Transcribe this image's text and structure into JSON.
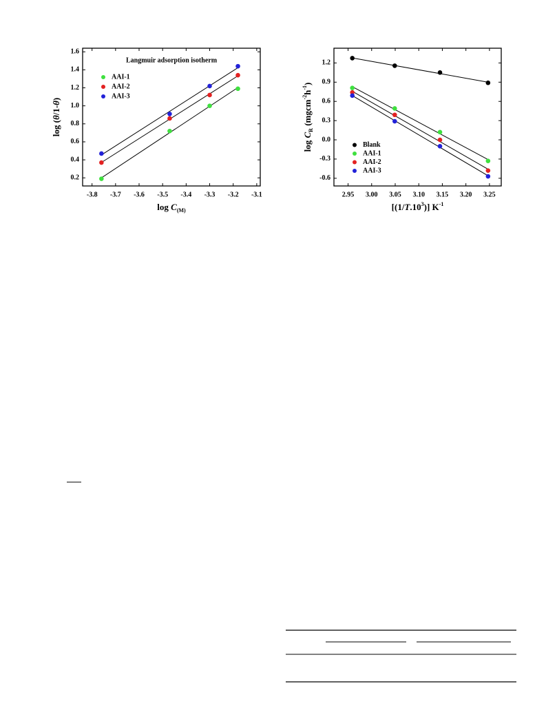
{
  "chart_data": [
    {
      "type": "scatter",
      "title": "Langmuir adsorption isotherm",
      "x_label": [
        {
          "text": "log ",
          "style": "normal"
        },
        {
          "text": "C",
          "style": "italic"
        },
        {
          "text": "(M)",
          "style": "sub"
        }
      ],
      "y_label": [
        {
          "text": "log (",
          "style": "normal"
        },
        {
          "text": "θ",
          "style": "italic"
        },
        {
          "text": "/1-",
          "style": "normal"
        },
        {
          "text": "θ",
          "style": "italic"
        },
        {
          "text": ")",
          "style": "normal"
        }
      ],
      "x": [
        -3.76,
        -3.47,
        -3.3,
        -3.18
      ],
      "series": [
        {
          "name": "AAI-1",
          "color": "#3fe03f",
          "values": [
            0.19,
            0.72,
            1.0,
            1.19
          ]
        },
        {
          "name": "AAI-2",
          "color": "#e32222",
          "values": [
            0.37,
            0.86,
            1.12,
            1.34
          ]
        },
        {
          "name": "AAI-3",
          "color": "#2222d8",
          "values": [
            0.47,
            0.91,
            1.22,
            1.44
          ]
        }
      ],
      "xlim": [
        -3.84,
        -3.085
      ],
      "xticks": [
        -3.8,
        -3.7,
        -3.6,
        -3.5,
        -3.4,
        -3.3,
        -3.2,
        -3.1
      ],
      "ylim": [
        0.11,
        1.64
      ],
      "yticks": [
        0.2,
        0.4,
        0.6,
        0.8,
        {
          "value": 1,
          "label": "1.0"
        },
        1.2,
        1.4,
        1.6
      ],
      "legend": "upper left",
      "fit_lines": true
    },
    {
      "type": "scatter",
      "x_label": [
        {
          "text": "[(1/",
          "style": "normal"
        },
        {
          "text": "T",
          "style": "italic"
        },
        {
          "text": ".10",
          "style": "normal"
        },
        {
          "text": "3",
          "style": "sup"
        },
        {
          "text": ")] K",
          "style": "normal"
        },
        {
          "text": "-1",
          "style": "sup"
        }
      ],
      "y_label": [
        {
          "text": "log ",
          "style": "normal"
        },
        {
          "text": "C",
          "style": "italic"
        },
        {
          "text": "R",
          "style": "sub"
        },
        {
          "text": " (mgcm",
          "style": "normal"
        },
        {
          "text": "-2",
          "style": "sup"
        },
        {
          "text": "h",
          "style": "normal"
        },
        {
          "text": "-1",
          "style": "sup"
        },
        {
          "text": ")",
          "style": "normal"
        }
      ],
      "x": [
        2.959,
        3.049,
        3.145,
        3.247
      ],
      "series": [
        {
          "name": "Blank",
          "color": "#000000",
          "values": [
            1.275,
            1.157,
            1.05,
            0.89
          ]
        },
        {
          "name": "AAI-1",
          "color": "#3fe03f",
          "values": [
            0.81,
            0.49,
            0.12,
            -0.33
          ]
        },
        {
          "name": "AAI-2",
          "color": "#e32222",
          "values": [
            0.74,
            0.39,
            0.0,
            -0.48
          ]
        },
        {
          "name": "AAI-3",
          "color": "#2222d8",
          "values": [
            0.69,
            0.29,
            -0.1,
            -0.57
          ]
        }
      ],
      "xlim": [
        2.92,
        3.275
      ],
      "xticks": [
        2.95,
        {
          "value": 3,
          "label": "3.00"
        },
        3.05,
        {
          "value": 3.1,
          "label": "3.10"
        },
        3.15,
        {
          "value": 3.2,
          "label": "3.20"
        },
        3.25
      ],
      "ylim": [
        -0.72,
        1.43
      ],
      "yticks": [
        -0.6,
        -0.3,
        {
          "value": 0,
          "label": "0.0"
        },
        0.3,
        0.6,
        0.9,
        1.2
      ],
      "legend": "lower left",
      "fit_lines": true
    }
  ]
}
